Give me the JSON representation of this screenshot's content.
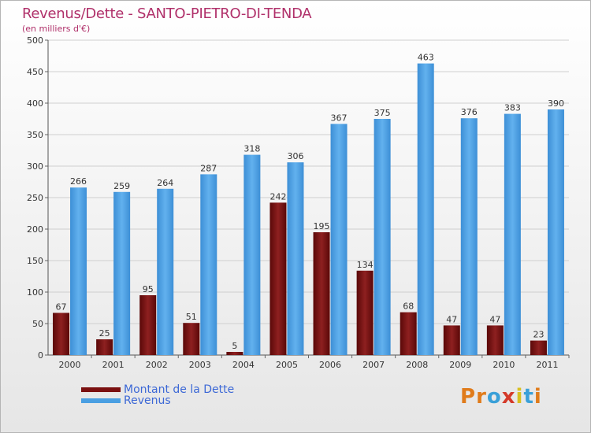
{
  "header": {
    "title": "Revenus/Dette - SANTO-PIETRO-DI-TENDA",
    "subtitle": "(en milliers d'€)"
  },
  "legend": {
    "items": [
      {
        "label": "Montant de la Dette",
        "color": "#7a1010"
      },
      {
        "label": "Revenus",
        "color": "#4a9fe2"
      }
    ]
  },
  "logo": {
    "text": "Proxiti",
    "colors": [
      "#e07b1a",
      "#e07b1a",
      "#3aa0d8",
      "#d43a2a",
      "#d8c020",
      "#3aa0d8",
      "#e07b1a"
    ]
  },
  "chart_data": {
    "type": "bar",
    "title": "Revenus/Dette - SANTO-PIETRO-DI-TENDA",
    "subtitle": "(en milliers d'€)",
    "categories": [
      "2000",
      "2001",
      "2002",
      "2003",
      "2004",
      "2005",
      "2006",
      "2007",
      "2008",
      "2009",
      "2010",
      "2011"
    ],
    "series": [
      {
        "name": "Montant de la Dette",
        "color": "#7a1010",
        "values": [
          67,
          25,
          95,
          51,
          5,
          242,
          195,
          134,
          68,
          47,
          47,
          23
        ]
      },
      {
        "name": "Revenus",
        "color": "#4a9fe2",
        "values": [
          266,
          259,
          264,
          287,
          318,
          306,
          367,
          375,
          463,
          376,
          383,
          390
        ]
      }
    ],
    "ylim": [
      0,
      500
    ],
    "yticks": [
      0,
      50,
      100,
      150,
      200,
      250,
      300,
      350,
      400,
      450,
      500
    ],
    "grid": true,
    "legend_position": "bottom-left"
  }
}
